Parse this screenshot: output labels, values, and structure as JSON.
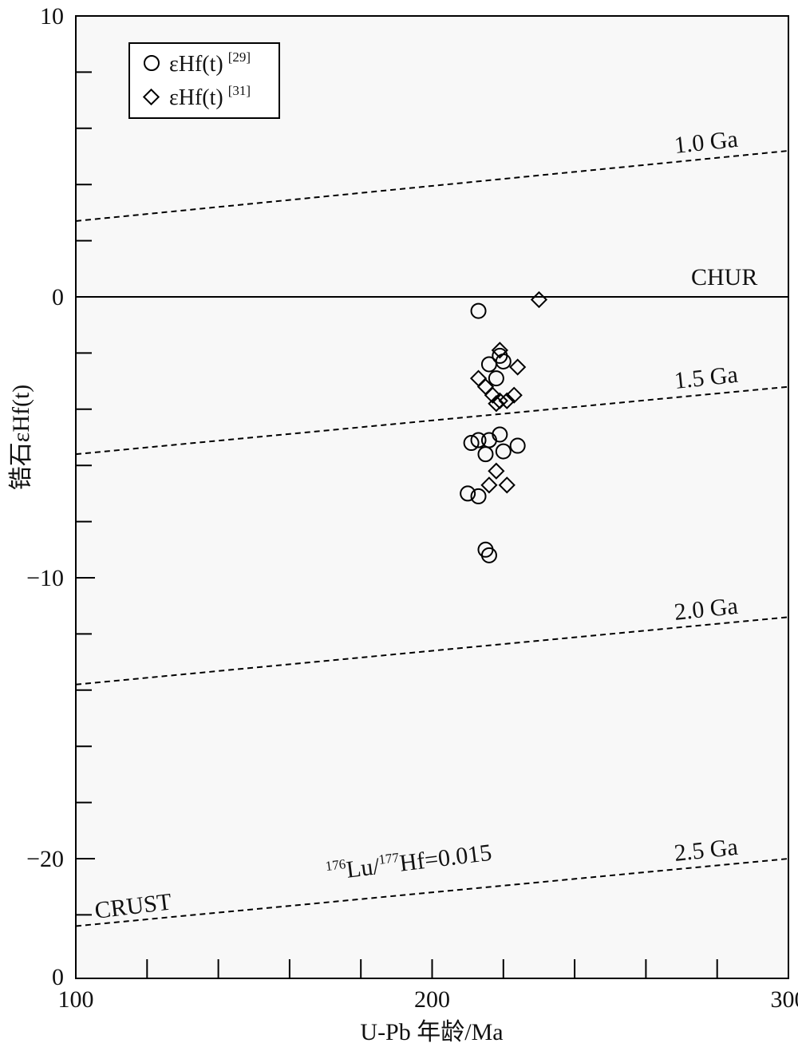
{
  "chart_data": {
    "type": "scatter",
    "xlabel": "U-Pb 年龄/Ma",
    "ylabel": "锆石εHf(t)",
    "xlim": [
      100,
      300
    ],
    "ylim": [
      -24,
      10
    ],
    "x_ticks": [
      100,
      200,
      300
    ],
    "x_tick_labels": [
      "100",
      "200",
      "300"
    ],
    "y_ticks": [
      10,
      0,
      -10,
      -20
    ],
    "y_tick_labels": [
      "10",
      "0",
      "−10",
      "−20"
    ],
    "y_bottom_label": "0",
    "grid": false,
    "legend_position": "top-left",
    "series": [
      {
        "name": "εHf(t) [29]",
        "label_main": "εHf(t)",
        "label_ref": "[29]",
        "marker": "circle",
        "points": [
          [
            213,
            -0.5
          ],
          [
            216,
            -2.4
          ],
          [
            219,
            -2.1
          ],
          [
            220,
            -2.3
          ],
          [
            218,
            -2.9
          ],
          [
            211,
            -5.2
          ],
          [
            213,
            -5.1
          ],
          [
            216,
            -5.1
          ],
          [
            219,
            -4.9
          ],
          [
            224,
            -5.3
          ],
          [
            215,
            -5.6
          ],
          [
            220,
            -5.5
          ],
          [
            210,
            -7.0
          ],
          [
            213,
            -7.1
          ],
          [
            215,
            -9.0
          ],
          [
            216,
            -9.2
          ]
        ]
      },
      {
        "name": "εHf(t) [31]",
        "label_main": "εHf(t)",
        "label_ref": "[31]",
        "marker": "diamond",
        "points": [
          [
            230,
            -0.1
          ],
          [
            219,
            -1.9
          ],
          [
            224,
            -2.5
          ],
          [
            213,
            -2.9
          ],
          [
            215,
            -3.2
          ],
          [
            217,
            -3.5
          ],
          [
            223,
            -3.5
          ],
          [
            219,
            -3.7
          ],
          [
            221,
            -3.7
          ],
          [
            218,
            -3.8
          ],
          [
            218,
            -6.2
          ],
          [
            216,
            -6.7
          ],
          [
            221,
            -6.7
          ]
        ]
      }
    ],
    "reference_lines": [
      {
        "label": "CHUR",
        "style": "solid",
        "x": [
          100,
          300
        ],
        "y": [
          0,
          0
        ]
      },
      {
        "label": "1.0 Ga",
        "style": "dashed",
        "x": [
          100,
          300
        ],
        "y": [
          2.7,
          5.2
        ]
      },
      {
        "label": "1.5 Ga",
        "style": "dashed",
        "x": [
          100,
          300
        ],
        "y": [
          -5.6,
          -3.2
        ]
      },
      {
        "label": "2.0 Ga",
        "style": "dashed",
        "x": [
          100,
          300
        ],
        "y": [
          -13.8,
          -11.4
        ]
      },
      {
        "label": "2.5 Ga",
        "style": "dashed",
        "x": [
          100,
          300
        ],
        "y": [
          -22.4,
          -20.0
        ]
      }
    ],
    "annotations": {
      "crust": "CRUST",
      "ratio_sup1": "176",
      "ratio_mid1": "Lu/",
      "ratio_sup2": "177",
      "ratio_mid2": "Hf=0.015"
    }
  }
}
